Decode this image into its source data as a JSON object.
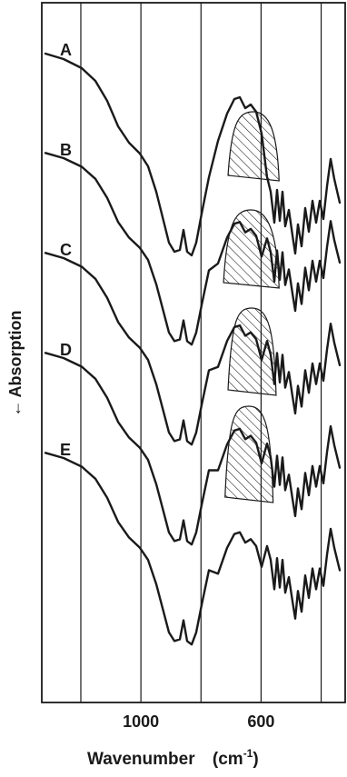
{
  "chart_data": {
    "type": "line",
    "xlabel": "Wavenumber",
    "xlabel_unit": "(cm",
    "xlabel_unit_sup": "-1",
    "xlabel_unit_close": ")",
    "ylabel": "Absorption",
    "ylabel_arrow": "←",
    "x_reversed": true,
    "xlim": [
      1330,
      320
    ],
    "x_ticks": [
      {
        "value": 1000,
        "label": "1000"
      },
      {
        "value": 600,
        "label": "600"
      }
    ],
    "vertical_gridlines_x": [
      1200,
      1000,
      800,
      600,
      400
    ],
    "legend": "none",
    "grid": "vertical lines only",
    "series": [
      {
        "name": "A",
        "offset": 0,
        "hatched": null
      },
      {
        "name": "B",
        "offset": 1,
        "hatched": [
          710,
          540
        ]
      },
      {
        "name": "C",
        "offset": 2,
        "hatched": [
          725,
          540
        ]
      },
      {
        "name": "D",
        "offset": 3,
        "hatched": [
          710,
          550
        ]
      },
      {
        "name": "E",
        "offset": 4,
        "hatched": [
          720,
          560
        ]
      }
    ]
  }
}
